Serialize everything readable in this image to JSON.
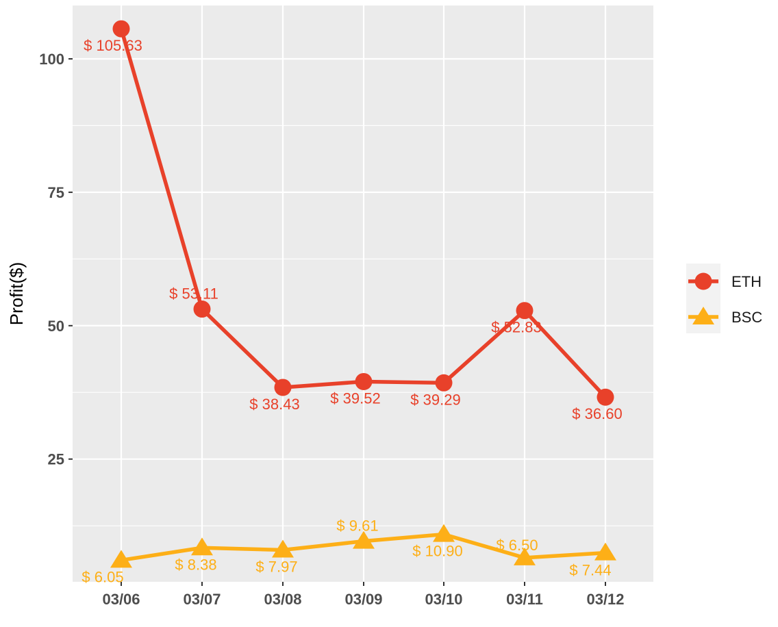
{
  "chart_data": {
    "type": "line",
    "title": "",
    "xlabel": "",
    "ylabel": "Profit($)",
    "categories": [
      "03/06",
      "03/07",
      "03/08",
      "03/09",
      "03/10",
      "03/11",
      "03/12"
    ],
    "yticks": [
      25,
      50,
      75,
      100
    ],
    "ylim": [
      2,
      110
    ],
    "grid": true,
    "legend_position": "right",
    "series": [
      {
        "name": "ETH",
        "color": "#E8412A",
        "marker": "circle",
        "values": [
          105.63,
          53.11,
          38.43,
          39.52,
          39.29,
          52.83,
          36.6
        ],
        "labels": [
          "$ 105.63",
          "$ 53.11",
          "$ 38.43",
          "$ 39.52",
          "$ 39.29",
          "$ 52.83",
          "$ 36.60"
        ]
      },
      {
        "name": "BSC",
        "color": "#FDAF17",
        "marker": "triangle",
        "values": [
          6.05,
          8.38,
          7.97,
          9.61,
          10.9,
          6.5,
          7.44
        ],
        "labels": [
          "$ 6.05",
          "$ 8.38",
          "$ 7.97",
          "$ 9.61",
          "$ 10.90",
          "$ 6.50",
          "$ 7.44"
        ]
      }
    ]
  }
}
